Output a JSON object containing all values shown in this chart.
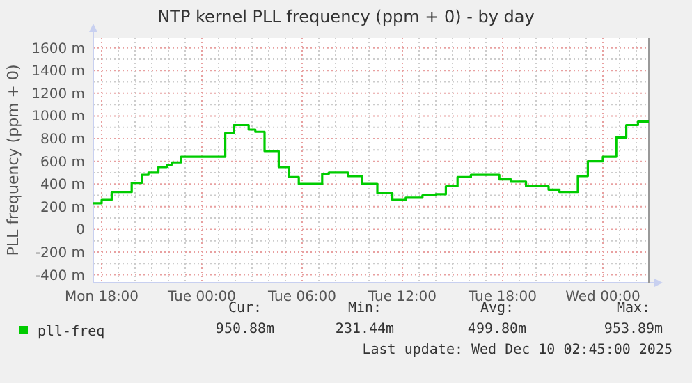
{
  "chart_data": {
    "type": "step",
    "title": "NTP kernel PLL frequency (ppm + 0) - by day",
    "ylabel": "PLL frequency (ppm + 0)",
    "x": [
      "2025-12-08T17:30",
      "2025-12-08T18:00",
      "2025-12-08T18:36",
      "2025-12-08T19:48",
      "2025-12-08T20:24",
      "2025-12-08T20:48",
      "2025-12-08T21:24",
      "2025-12-08T21:54",
      "2025-12-08T22:12",
      "2025-12-08T22:45",
      "2025-12-09T01:24",
      "2025-12-09T01:54",
      "2025-12-09T02:48",
      "2025-12-09T03:12",
      "2025-12-09T03:45",
      "2025-12-09T04:36",
      "2025-12-09T05:12",
      "2025-12-09T05:48",
      "2025-12-09T07:12",
      "2025-12-09T07:36",
      "2025-12-09T08:45",
      "2025-12-09T09:36",
      "2025-12-09T10:30",
      "2025-12-09T11:24",
      "2025-12-09T12:12",
      "2025-12-09T13:12",
      "2025-12-09T14:00",
      "2025-12-09T14:36",
      "2025-12-09T15:18",
      "2025-12-09T16:06",
      "2025-12-09T17:48",
      "2025-12-09T18:30",
      "2025-12-09T19:24",
      "2025-12-09T20:45",
      "2025-12-09T21:24",
      "2025-12-09T22:30",
      "2025-12-09T23:06",
      "2025-12-10T00:00",
      "2025-12-10T00:48",
      "2025-12-10T01:24",
      "2025-12-10T02:06",
      "2025-12-10T02:45"
    ],
    "series": [
      {
        "name": "pll-freq",
        "color": "#00cc00",
        "values": [
          230,
          260,
          330,
          410,
          480,
          500,
          550,
          570,
          590,
          640,
          850,
          920,
          880,
          860,
          690,
          550,
          460,
          400,
          490,
          500,
          470,
          400,
          320,
          260,
          280,
          300,
          310,
          380,
          460,
          480,
          440,
          420,
          380,
          350,
          330,
          470,
          600,
          640,
          810,
          920,
          950,
          950
        ]
      }
    ],
    "xlim": [
      "2025-12-08T17:30",
      "2025-12-10T02:45"
    ],
    "xticks": [
      {
        "value": "2025-12-08T18:00",
        "label": "Mon 18:00"
      },
      {
        "value": "2025-12-08T19:00",
        "label": null
      },
      {
        "value": "2025-12-08T20:00",
        "label": null
      },
      {
        "value": "2025-12-08T21:00",
        "label": null
      },
      {
        "value": "2025-12-08T22:00",
        "label": null
      },
      {
        "value": "2025-12-08T23:00",
        "label": null
      },
      {
        "value": "2025-12-09T00:00",
        "label": "Tue 00:00"
      },
      {
        "value": "2025-12-09T01:00",
        "label": null
      },
      {
        "value": "2025-12-09T02:00",
        "label": null
      },
      {
        "value": "2025-12-09T03:00",
        "label": null
      },
      {
        "value": "2025-12-09T04:00",
        "label": null
      },
      {
        "value": "2025-12-09T05:00",
        "label": null
      },
      {
        "value": "2025-12-09T06:00",
        "label": "Tue 06:00"
      },
      {
        "value": "2025-12-09T07:00",
        "label": null
      },
      {
        "value": "2025-12-09T08:00",
        "label": null
      },
      {
        "value": "2025-12-09T09:00",
        "label": null
      },
      {
        "value": "2025-12-09T10:00",
        "label": null
      },
      {
        "value": "2025-12-09T11:00",
        "label": null
      },
      {
        "value": "2025-12-09T12:00",
        "label": "Tue 12:00"
      },
      {
        "value": "2025-12-09T13:00",
        "label": null
      },
      {
        "value": "2025-12-09T14:00",
        "label": null
      },
      {
        "value": "2025-12-09T15:00",
        "label": null
      },
      {
        "value": "2025-12-09T16:00",
        "label": null
      },
      {
        "value": "2025-12-09T17:00",
        "label": null
      },
      {
        "value": "2025-12-09T18:00",
        "label": "Tue 18:00"
      },
      {
        "value": "2025-12-09T19:00",
        "label": null
      },
      {
        "value": "2025-12-09T20:00",
        "label": null
      },
      {
        "value": "2025-12-09T21:00",
        "label": null
      },
      {
        "value": "2025-12-09T22:00",
        "label": null
      },
      {
        "value": "2025-12-09T23:00",
        "label": null
      },
      {
        "value": "2025-12-10T00:00",
        "label": "Wed 00:00"
      },
      {
        "value": "2025-12-10T01:00",
        "label": null
      },
      {
        "value": "2025-12-10T02:00",
        "label": null
      }
    ],
    "ylim": [
      -470,
      1690
    ],
    "yticks": [
      {
        "value": -400,
        "label": "-400 m"
      },
      {
        "value": -300,
        "label": null
      },
      {
        "value": -200,
        "label": "-200 m"
      },
      {
        "value": -100,
        "label": null
      },
      {
        "value": 0,
        "label": "0"
      },
      {
        "value": 100,
        "label": null
      },
      {
        "value": 200,
        "label": "200 m"
      },
      {
        "value": 300,
        "label": null
      },
      {
        "value": 400,
        "label": "400 m"
      },
      {
        "value": 500,
        "label": null
      },
      {
        "value": 600,
        "label": "600 m"
      },
      {
        "value": 700,
        "label": null
      },
      {
        "value": 800,
        "label": "800 m"
      },
      {
        "value": 900,
        "label": null
      },
      {
        "value": 1000,
        "label": "1000 m"
      },
      {
        "value": 1100,
        "label": null
      },
      {
        "value": 1200,
        "label": "1200 m"
      },
      {
        "value": 1300,
        "label": null
      },
      {
        "value": 1400,
        "label": "1400 m"
      },
      {
        "value": 1500,
        "label": null
      },
      {
        "value": 1600,
        "label": "1600 m"
      }
    ],
    "grid": true,
    "legend": "bottom",
    "annotations": [
      "Cur:",
      "950.88m",
      "Min:",
      "231.44m",
      "Avg:",
      "499.80m",
      "Max:",
      "953.89m",
      "Last update: Wed Dec 10 02:45:00 2025"
    ]
  }
}
